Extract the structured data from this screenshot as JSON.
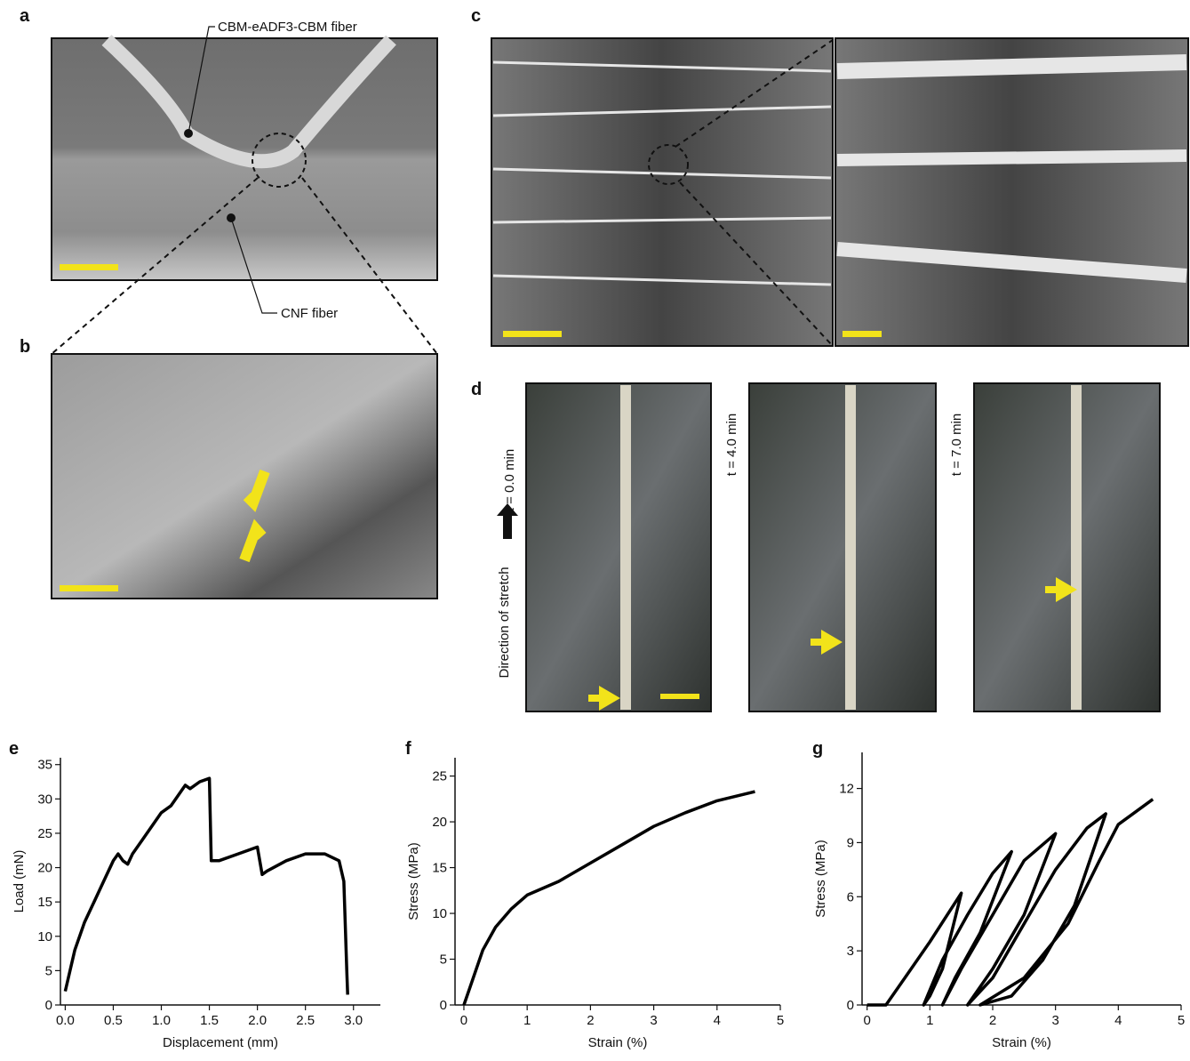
{
  "panel_labels": [
    "a",
    "b",
    "c",
    "d",
    "e",
    "f",
    "g"
  ],
  "annotations": {
    "fiber_top": "CBM-eADF3-CBM fiber",
    "fiber_bottom": "CNF fiber",
    "time_labels": [
      "t = 0.0 min",
      "t = 4.0 min",
      "t = 7.0 min"
    ],
    "stretch": "Direction of stretch"
  },
  "chart_data": [
    {
      "type": "line",
      "xlabel": "Displacement (mm)",
      "ylabel": "Load (mN)",
      "xlim": [
        -0.05,
        3.28
      ],
      "ylim": [
        0,
        36
      ],
      "xticks": [
        {
          "value": 0,
          "label": "0.0"
        },
        {
          "value": 0.5,
          "label": "0.5"
        },
        {
          "value": 1,
          "label": "1.0"
        },
        {
          "value": 1.5,
          "label": "1.5"
        },
        {
          "value": 2,
          "label": "2.0"
        },
        {
          "value": 2.5,
          "label": "2.5"
        },
        {
          "value": 3,
          "label": "3.0"
        }
      ],
      "yticks": [
        0,
        5,
        10,
        15,
        20,
        25,
        30,
        35
      ],
      "x": [
        0,
        0.05,
        0.1,
        0.2,
        0.3,
        0.4,
        0.5,
        0.55,
        0.6,
        0.65,
        0.7,
        0.8,
        0.9,
        1.0,
        1.1,
        1.2,
        1.25,
        1.3,
        1.4,
        1.5,
        1.52,
        1.6,
        1.8,
        2.0,
        2.05,
        2.1,
        2.3,
        2.5,
        2.7,
        2.85,
        2.9,
        2.93,
        2.94
      ],
      "series": [
        {
          "color": "#000000",
          "values": [
            2,
            5,
            8,
            12,
            15,
            18,
            21,
            22,
            21,
            20.5,
            22,
            24,
            26,
            28,
            29,
            31,
            32,
            31.5,
            32.5,
            33,
            21,
            21,
            22,
            23,
            19,
            19.5,
            21,
            22,
            22,
            21,
            18,
            5,
            1.5
          ]
        }
      ]
    },
    {
      "type": "line",
      "xlabel": "Strain (%)",
      "ylabel": "Stress (MPa)",
      "xlim": [
        -0.14,
        5
      ],
      "ylim": [
        0,
        27
      ],
      "xticks": [
        0,
        1,
        2,
        3,
        4,
        5
      ],
      "yticks": [
        0,
        5,
        10,
        15,
        20,
        25
      ],
      "x": [
        0,
        0.1,
        0.2,
        0.3,
        0.5,
        0.75,
        1,
        1.5,
        2,
        2.5,
        3,
        3.5,
        4,
        4.6
      ],
      "series": [
        {
          "color": "#000000",
          "values": [
            0,
            2,
            4,
            6,
            8.5,
            10.5,
            12,
            13.5,
            15.5,
            17.5,
            19.5,
            21,
            22.3,
            23.3
          ]
        }
      ]
    },
    {
      "type": "line",
      "xlabel": "Strain (%)",
      "ylabel": "Stress (MPa)",
      "xlim": [
        -0.08,
        5
      ],
      "ylim": [
        0,
        14
      ],
      "xticks": [
        0,
        1,
        2,
        3,
        4,
        5
      ],
      "yticks": [
        0,
        3,
        6,
        9,
        12
      ],
      "x": [
        0,
        0.3,
        0.6,
        1.0,
        1.5,
        1.2,
        1.0,
        0.9,
        1.2,
        1.6,
        2.0,
        2.3,
        1.8,
        1.4,
        1.2,
        1.5,
        2.0,
        2.5,
        3.0,
        2.5,
        2.0,
        1.6,
        2.0,
        2.5,
        3.0,
        3.5,
        3.8,
        3.3,
        2.8,
        2.3,
        1.8,
        2.5,
        3.2,
        3.7,
        4.0,
        4.55
      ],
      "series": [
        {
          "color": "#000000",
          "values": [
            0,
            0,
            1.5,
            3.5,
            6.2,
            2,
            0.5,
            0,
            2.5,
            5,
            7.3,
            8.5,
            4,
            1.5,
            0,
            2,
            5,
            8,
            9.5,
            5,
            2,
            0,
            1.5,
            4.5,
            7.5,
            9.8,
            10.6,
            5.5,
            2.5,
            0.5,
            0,
            1.5,
            4.5,
            8,
            10,
            11.4
          ]
        }
      ]
    }
  ]
}
